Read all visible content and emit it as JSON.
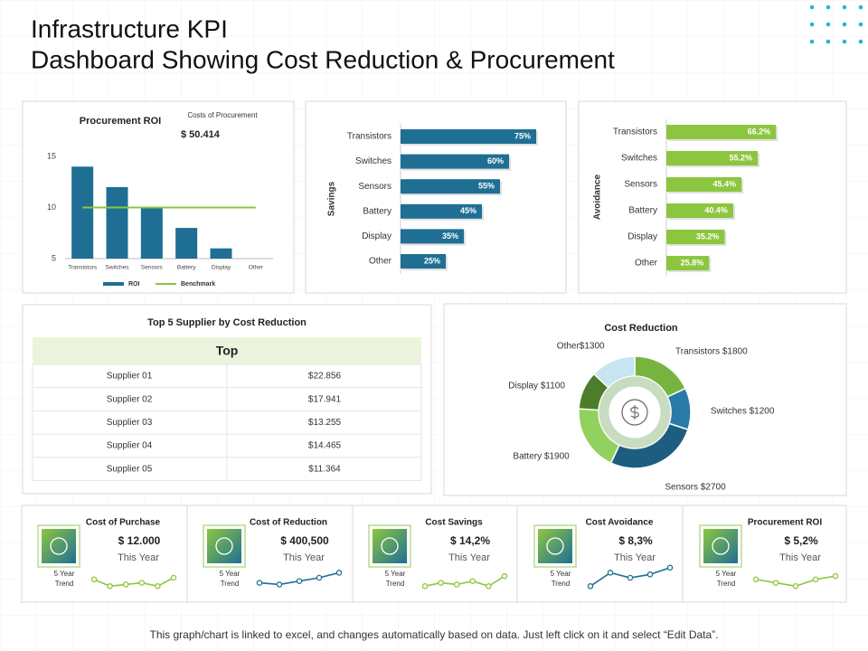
{
  "header": {
    "title_line1": "Infrastructure KPI",
    "title_line2": "Dashboard Showing Cost Reduction & Procurement"
  },
  "chart_data": [
    {
      "type": "bar",
      "title": "Procurement ROI",
      "annotation_label": "Costs of Procurement",
      "annotation_value": "$ 50.414",
      "categories": [
        "Transistors",
        "Switches",
        "Sensors",
        "Battery",
        "Display",
        "Other"
      ],
      "series": [
        {
          "name": "ROI",
          "type": "bar",
          "color": "#1f6f94",
          "values": [
            14,
            12,
            10,
            8,
            6,
            null
          ]
        },
        {
          "name": "Benchmark",
          "type": "line",
          "color": "#8cc63f",
          "values": [
            10,
            10,
            10,
            10,
            10,
            10
          ]
        }
      ],
      "ylim": [
        5,
        15
      ],
      "yticks": [
        5,
        10,
        15
      ],
      "legend": "bottom"
    },
    {
      "type": "barh",
      "y_label": "Savings",
      "categories": [
        "Transistors",
        "Switches",
        "Sensors",
        "Battery",
        "Display",
        "Other"
      ],
      "values": [
        75,
        60,
        55,
        45,
        35,
        25
      ],
      "value_labels": [
        "75%",
        "60%",
        "55%",
        "45%",
        "35%",
        "25%"
      ],
      "color": "#1f6f94",
      "xlim": [
        0,
        100
      ]
    },
    {
      "type": "barh",
      "y_label": "Avoidance",
      "categories": [
        "Transistors",
        "Switches",
        "Sensors",
        "Battery",
        "Display",
        "Other"
      ],
      "values": [
        66.2,
        55.2,
        45.4,
        40.4,
        35.2,
        25.8
      ],
      "value_labels": [
        "66.2%",
        "55.2%",
        "45.4%",
        "40.4%",
        "35.2%",
        "25.8%"
      ],
      "color": "#8cc63f",
      "xlim": [
        0,
        100
      ]
    },
    {
      "type": "donut",
      "title": "Cost Reduction",
      "categories": [
        "Transistors",
        "Switches",
        "Sensors",
        "Battery",
        "Display",
        "Other"
      ],
      "values": [
        1800,
        1200,
        2700,
        1900,
        1100,
        1300
      ],
      "value_labels": [
        "Transistors $1800",
        "Switches $1200",
        "Sensors $2700",
        "Battery $1900",
        "Display $1100",
        "Other$1300"
      ],
      "colors": [
        "#76b43f",
        "#2a7aa8",
        "#1d5e80",
        "#93d15f",
        "#4d7d2a",
        "#c6e4f1"
      ]
    }
  ],
  "table": {
    "title": "Top 5 Supplier by Cost Reduction",
    "header": "Top",
    "rows": [
      [
        "Supplier 01",
        "$22.856"
      ],
      [
        "Supplier 02",
        "$17.941"
      ],
      [
        "Supplier 03",
        "$13.255"
      ],
      [
        "Supplier 04",
        "$14.465"
      ],
      [
        "Supplier 05",
        "$11.364"
      ]
    ]
  },
  "kpis": [
    {
      "title": "Cost of Purchase",
      "value": "$ 12.000",
      "period": "This Year",
      "trend_label": [
        "5 Year",
        "Trend"
      ],
      "trend": [
        3,
        1,
        1.5,
        2,
        1,
        3.5
      ],
      "trend_ylim": [
        0,
        7
      ],
      "color": "#8cc63f"
    },
    {
      "title": "Cost of Reduction",
      "value": "$ 400,500",
      "period": "This Year",
      "trend_label": [
        "5 Year",
        "Trend"
      ],
      "trend": [
        2,
        1.5,
        2.5,
        3.5,
        5
      ],
      "trend_ylim": [
        0,
        7
      ],
      "color": "#1f6f94"
    },
    {
      "title": "Cost Savings",
      "value": "$ 14,2%",
      "period": "This Year",
      "trend_label": [
        "5 Year",
        "Trend"
      ],
      "trend": [
        1,
        2,
        1.5,
        2.5,
        1,
        4
      ],
      "trend_ylim": [
        0,
        7
      ],
      "color": "#8cc63f"
    },
    {
      "title": "Cost Avoidance",
      "value": "$ 8,3%",
      "period": "This Year",
      "trend_label": [
        "5 Year",
        "Trend"
      ],
      "trend": [
        1,
        5,
        3.5,
        4.5,
        6.5
      ],
      "trend_ylim": [
        0,
        7
      ],
      "color": "#1f6f94"
    },
    {
      "title": "Procurement ROI",
      "value": "$ 5,2%",
      "period": "This Year",
      "trend_label": [
        "5 Year",
        "Trend"
      ],
      "trend": [
        3,
        2,
        1,
        3,
        4
      ],
      "trend_ylim": [
        0,
        7
      ],
      "color": "#8cc63f"
    }
  ],
  "footer": "This graph/chart is linked to excel, and changes automatically based on data. Just left click on it and select “Edit Data”."
}
